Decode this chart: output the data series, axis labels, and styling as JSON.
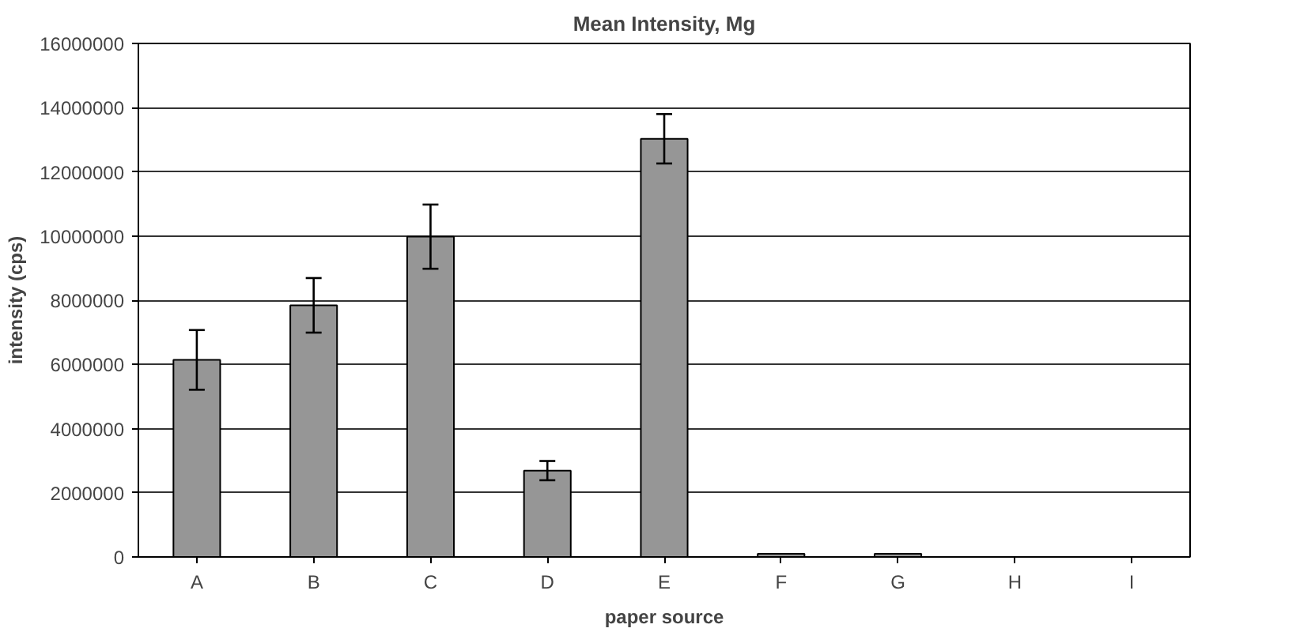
{
  "chart_data": {
    "type": "bar",
    "title": "Mean Intensity, Mg",
    "xlabel": "paper source",
    "ylabel": "intensity (cps)",
    "categories": [
      "A",
      "B",
      "C",
      "D",
      "E",
      "F",
      "G",
      "H",
      "I"
    ],
    "values": [
      6140000,
      7840000,
      9980000,
      2690000,
      13030000,
      100000,
      100000,
      null,
      null
    ],
    "errors": [
      930000,
      850000,
      1000000,
      300000,
      770000,
      null,
      null,
      null,
      null
    ],
    "color": "#969696",
    "ylim": [
      0,
      16000000
    ],
    "yticks": [
      0,
      2000000,
      4000000,
      6000000,
      8000000,
      10000000,
      12000000,
      14000000,
      16000000
    ],
    "grid": "y"
  }
}
